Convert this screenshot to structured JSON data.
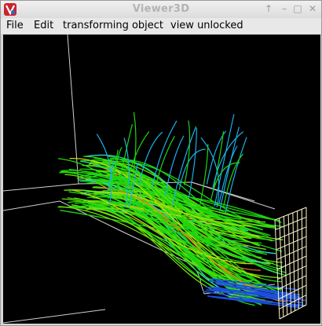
{
  "window": {
    "title": "Viewer3D",
    "controls": {
      "pin": "↑",
      "minimize": "–",
      "maximize": "□",
      "close": "✕"
    }
  },
  "menubar": {
    "items": [
      "File",
      "Edit",
      "transforming object",
      "view unlocked"
    ]
  },
  "viewport": {
    "background": "#000000",
    "wireframe_color": "#d0d0d0",
    "grid_color": "#fff7cc",
    "streamline_colors": [
      "#1fd60f",
      "#6fe00a",
      "#c8d80a",
      "#e07a14",
      "#1ab0e8",
      "#1b4fe0",
      "#2dd8c0"
    ]
  }
}
